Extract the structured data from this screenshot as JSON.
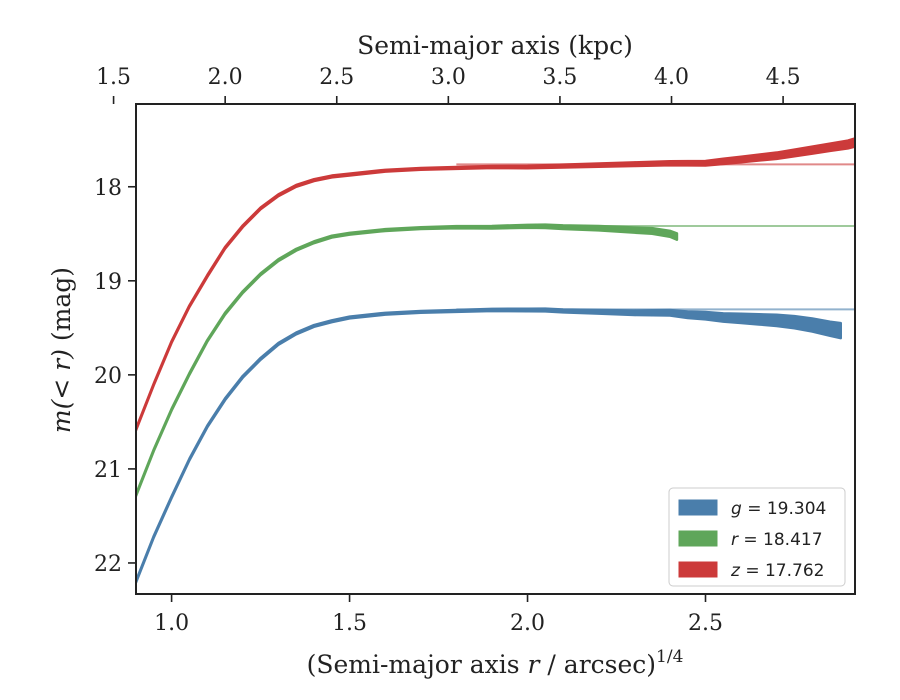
{
  "chart_data": {
    "type": "area",
    "xlabel_bottom": "(Semi-major axis r / arcsec)",
    "xlabel_bottom_italic": "r",
    "xlabel_bottom_pre": "(Semi-major axis ",
    "xlabel_bottom_post": " / arcsec)",
    "xlabel_bottom_sup": "1/4",
    "xlabel_top": "Semi-major axis (kpc)",
    "ylabel_pre": "m(< r)",
    "ylabel_post": " (mag)",
    "xlim": [
      0.9,
      2.92
    ],
    "ylim": [
      22.33,
      17.12
    ],
    "y_inverted": true,
    "x_ticks": [
      1.0,
      1.5,
      2.0,
      2.5
    ],
    "x_tick_labels": [
      "1.0",
      "1.5",
      "2.0",
      "2.5"
    ],
    "y_ticks": [
      18,
      19,
      20,
      21,
      22
    ],
    "y_tick_labels": [
      "18",
      "19",
      "20",
      "21",
      "22"
    ],
    "top_ticks_kpc": [
      1.5,
      2.0,
      2.5,
      3.0,
      3.5,
      4.0,
      4.5
    ],
    "top_tick_labels": [
      "1.5",
      "2.0",
      "2.5",
      "3.0",
      "3.5",
      "4.0",
      "4.5"
    ],
    "top_axis_map": {
      "x_at_1_5kpc": 0.837,
      "slope_x_per_kpc": 0.627
    },
    "legend_position": "lower right",
    "series": [
      {
        "name": "g = 19.304",
        "legend_label": {
          "var": "g",
          "value": "19.304"
        },
        "color": "#4a7eab",
        "asymptote": 19.304,
        "x": [
          0.9,
          0.95,
          1.0,
          1.05,
          1.1,
          1.15,
          1.2,
          1.25,
          1.3,
          1.35,
          1.4,
          1.45,
          1.5,
          1.6,
          1.7,
          1.8,
          1.9,
          2.0,
          2.05,
          2.1,
          2.2,
          2.3,
          2.4,
          2.45,
          2.5,
          2.55,
          2.6,
          2.65,
          2.7,
          2.75,
          2.8,
          2.85,
          2.88
        ],
        "y": [
          22.2,
          21.72,
          21.3,
          20.9,
          20.55,
          20.26,
          20.02,
          19.83,
          19.67,
          19.56,
          19.48,
          19.43,
          19.39,
          19.35,
          19.33,
          19.32,
          19.31,
          19.31,
          19.31,
          19.32,
          19.33,
          19.34,
          19.34,
          19.36,
          19.37,
          19.39,
          19.4,
          19.41,
          19.42,
          19.44,
          19.47,
          19.51,
          19.53
        ],
        "band": [
          0.01,
          0.01,
          0.01,
          0.01,
          0.01,
          0.01,
          0.01,
          0.01,
          0.01,
          0.01,
          0.01,
          0.01,
          0.01,
          0.01,
          0.01,
          0.01,
          0.012,
          0.014,
          0.015,
          0.016,
          0.02,
          0.025,
          0.03,
          0.035,
          0.04,
          0.045,
          0.05,
          0.055,
          0.06,
          0.065,
          0.07,
          0.075,
          0.08
        ]
      },
      {
        "name": "r = 18.417",
        "legend_label": {
          "var": "r",
          "value": "18.417"
        },
        "color": "#5fa65a",
        "asymptote": 18.417,
        "x": [
          0.9,
          0.95,
          1.0,
          1.05,
          1.1,
          1.15,
          1.2,
          1.25,
          1.3,
          1.35,
          1.4,
          1.45,
          1.5,
          1.6,
          1.7,
          1.8,
          1.9,
          2.0,
          2.05,
          2.1,
          2.2,
          2.3,
          2.35,
          2.4,
          2.42
        ],
        "y": [
          21.28,
          20.8,
          20.37,
          19.99,
          19.64,
          19.35,
          19.12,
          18.93,
          18.78,
          18.67,
          18.59,
          18.53,
          18.5,
          18.46,
          18.44,
          18.43,
          18.43,
          18.42,
          18.42,
          18.43,
          18.44,
          18.46,
          18.47,
          18.5,
          18.53
        ],
        "band": [
          0.01,
          0.01,
          0.01,
          0.01,
          0.01,
          0.01,
          0.01,
          0.01,
          0.01,
          0.01,
          0.01,
          0.01,
          0.01,
          0.01,
          0.01,
          0.012,
          0.014,
          0.016,
          0.018,
          0.02,
          0.024,
          0.028,
          0.03,
          0.032,
          0.034
        ]
      },
      {
        "name": "z = 17.762",
        "legend_label": {
          "var": "z",
          "value": "17.762"
        },
        "color": "#cc3a3a",
        "asymptote": 17.762,
        "x": [
          0.9,
          0.95,
          1.0,
          1.05,
          1.1,
          1.15,
          1.2,
          1.25,
          1.3,
          1.35,
          1.4,
          1.45,
          1.5,
          1.6,
          1.7,
          1.8,
          1.9,
          2.0,
          2.1,
          2.2,
          2.3,
          2.4,
          2.5,
          2.55,
          2.6,
          2.65,
          2.7,
          2.75,
          2.8,
          2.85,
          2.9,
          2.92
        ],
        "y": [
          20.58,
          20.1,
          19.65,
          19.27,
          18.95,
          18.65,
          18.42,
          18.23,
          18.09,
          17.99,
          17.93,
          17.89,
          17.87,
          17.83,
          17.81,
          17.8,
          17.79,
          17.79,
          17.78,
          17.77,
          17.76,
          17.75,
          17.75,
          17.73,
          17.71,
          17.69,
          17.67,
          17.64,
          17.61,
          17.58,
          17.55,
          17.53
        ],
        "band": [
          0.01,
          0.01,
          0.01,
          0.01,
          0.01,
          0.01,
          0.01,
          0.01,
          0.01,
          0.01,
          0.01,
          0.01,
          0.01,
          0.01,
          0.01,
          0.01,
          0.012,
          0.014,
          0.016,
          0.018,
          0.02,
          0.022,
          0.025,
          0.028,
          0.03,
          0.032,
          0.034,
          0.036,
          0.038,
          0.04,
          0.042,
          0.044
        ]
      }
    ]
  }
}
